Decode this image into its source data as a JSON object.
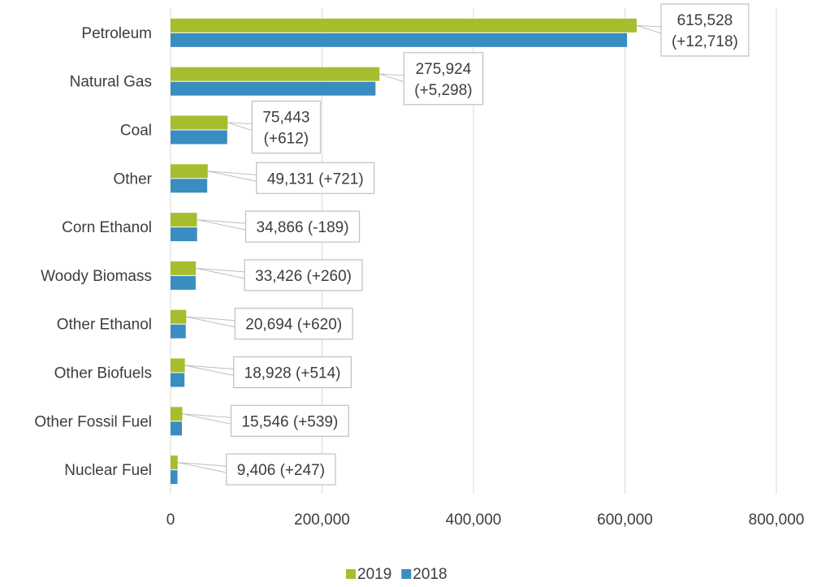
{
  "chart_data": {
    "type": "bar",
    "orientation": "horizontal",
    "categories": [
      "Petroleum",
      "Natural Gas",
      "Coal",
      "Other",
      "Corn Ethanol",
      "Woody Biomass",
      "Other Ethanol",
      "Other Biofuels",
      "Other Fossil Fuel",
      "Nuclear Fuel"
    ],
    "series": [
      {
        "name": "2019",
        "color": "#a8bd2e",
        "values": [
          615528,
          275924,
          75443,
          49131,
          34866,
          33426,
          20694,
          18928,
          15546,
          9406
        ]
      },
      {
        "name": "2018",
        "color": "#3a8dc0",
        "values": [
          602810,
          270626,
          74831,
          48410,
          35055,
          33166,
          20074,
          18414,
          15007,
          9159
        ]
      }
    ],
    "annotations": [
      {
        "lines": [
          "615,528",
          "(+12,718)"
        ]
      },
      {
        "lines": [
          "275,924",
          "(+5,298)"
        ]
      },
      {
        "lines": [
          "75,443",
          "(+612)"
        ]
      },
      {
        "lines": [
          "49,131  (+721)"
        ]
      },
      {
        "lines": [
          "34,866 (-189)"
        ]
      },
      {
        "lines": [
          "33,426 (+260)"
        ]
      },
      {
        "lines": [
          "20,694 (+620)"
        ]
      },
      {
        "lines": [
          "18,928  (+514)"
        ]
      },
      {
        "lines": [
          "15,546 (+539)"
        ]
      },
      {
        "lines": [
          "9,406 (+247)"
        ]
      }
    ],
    "x_ticks": [
      "0",
      "200,000",
      "400,000",
      "600,000",
      "800,000"
    ],
    "x_tick_values": [
      0,
      200000,
      400000,
      600000,
      800000
    ],
    "xlim": [
      0,
      800000
    ],
    "grid": true,
    "legend_position": "bottom"
  }
}
